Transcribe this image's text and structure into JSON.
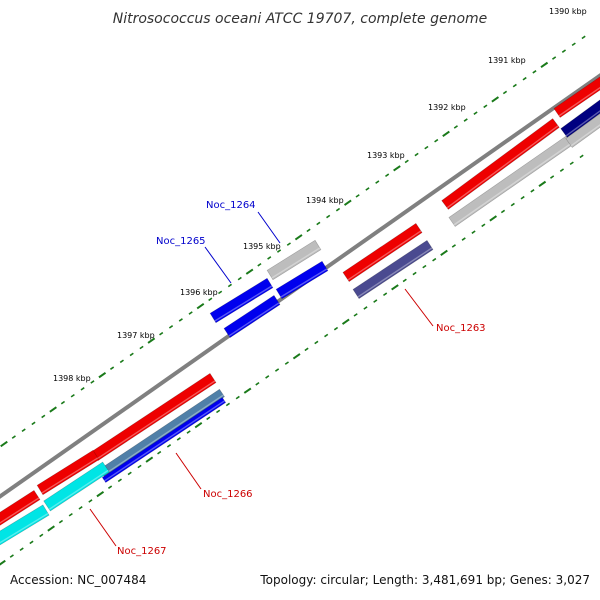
{
  "title": "Nitrosococcus oceani ATCC 19707, complete genome",
  "footer": {
    "accession": "Accession: NC_007484",
    "stats": "Topology: circular; Length: 3,481,691 bp; Genes: 3,027"
  },
  "scale_labels": [
    "1390 kbp",
    "1391 kbp",
    "1392 kbp",
    "1393 kbp",
    "1394 kbp",
    "1395 kbp",
    "1396 kbp",
    "1397 kbp",
    "1398 kbp"
  ],
  "gene_labels": [
    {
      "id": "Noc_1263",
      "strand": "reverse"
    },
    {
      "id": "Noc_1264",
      "strand": "forward"
    },
    {
      "id": "Noc_1265",
      "strand": "forward"
    },
    {
      "id": "Noc_1266",
      "strand": "reverse"
    },
    {
      "id": "Noc_1267",
      "strand": "reverse"
    }
  ],
  "colors": {
    "forward_label": "#0000cc",
    "reverse_label": "#cc0000",
    "backbone": "#808080",
    "tick": "#1a7a1a",
    "cds_red": "#ee0000",
    "cds_gray": "#bdbdbd",
    "cds_blue": "#0000ee",
    "cds_navy": "#000080",
    "cds_slate": "#4a4a90",
    "cds_cyan": "#00e5e5",
    "cds_steel": "#5080a8"
  }
}
